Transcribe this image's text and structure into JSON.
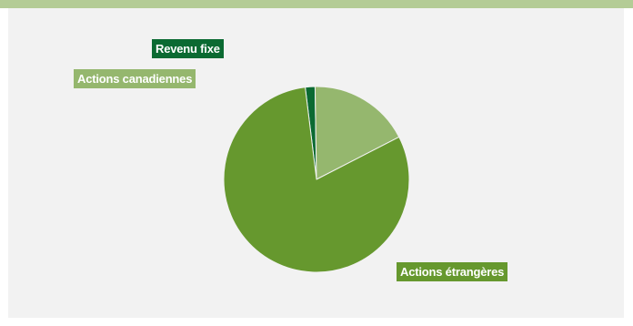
{
  "colors": {
    "top_band": "#b4cc96",
    "panel": "#f2f2f2",
    "slice_separator": "#f2f2f2"
  },
  "chart_data": {
    "type": "pie",
    "title": "",
    "legend": "none",
    "start_angle_deg": -7,
    "slices": [
      {
        "label": "Revenu fixe",
        "value": 1.7,
        "color": "#0b6a32"
      },
      {
        "label": "Actions canadiennes",
        "value": 17.7,
        "color": "#95b76e"
      },
      {
        "label": "Actions étrangères",
        "value": 80.6,
        "color": "#66982e"
      }
    ]
  }
}
